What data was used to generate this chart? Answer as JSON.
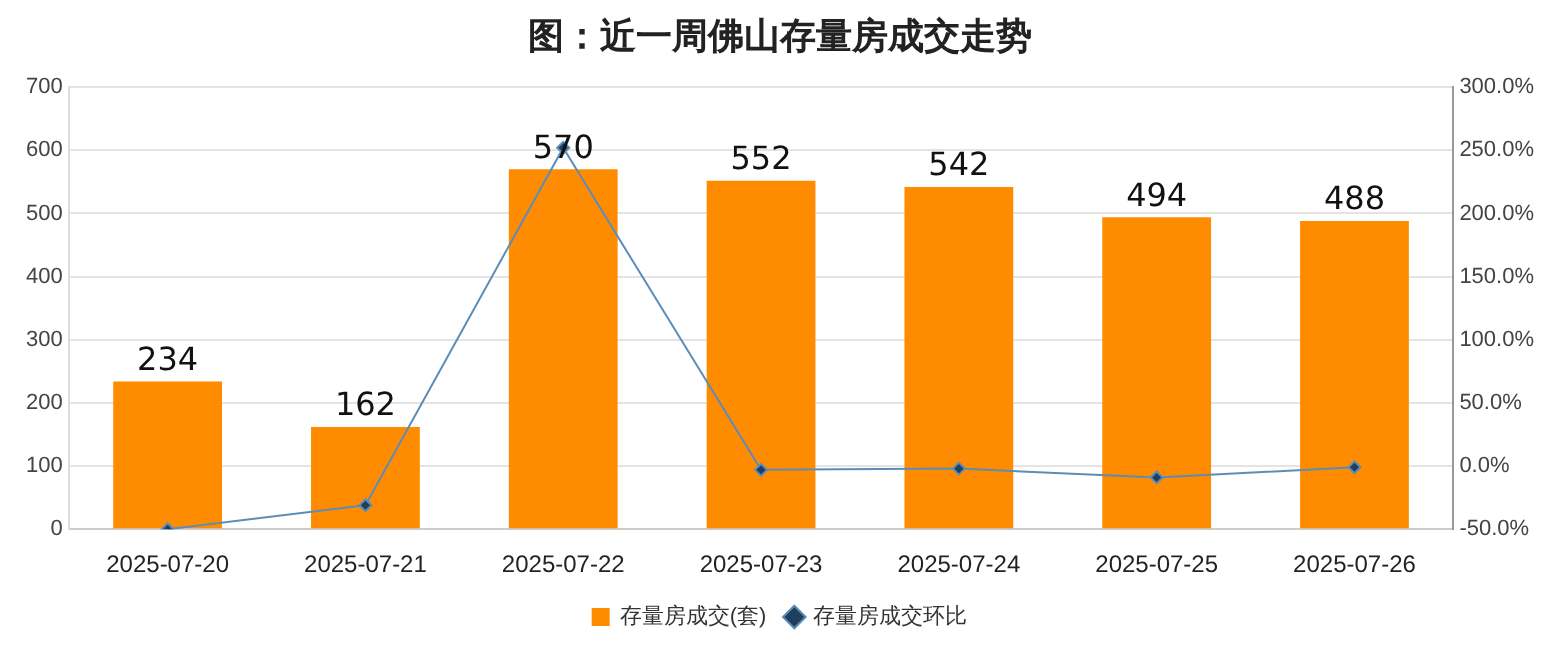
{
  "chart_data": {
    "type": "bar",
    "title": "图：近一周佛山存量房成交走势",
    "categories": [
      "2025-07-20",
      "2025-07-21",
      "2025-07-22",
      "2025-07-23",
      "2025-07-24",
      "2025-07-25",
      "2025-07-26"
    ],
    "series": [
      {
        "name": "存量房成交(套)",
        "color": "#ff8c00",
        "values": [
          234,
          162,
          570,
          552,
          542,
          494,
          488
        ],
        "value_labels": [
          "234",
          "162",
          "570",
          "552",
          "542",
          "494",
          "488"
        ]
      },
      {
        "name": "存量房成交环比",
        "type": "line",
        "axis": "y2",
        "color": "#5b8db8",
        "marker": "diamond",
        "values": [
          -50,
          -31,
          252,
          -3,
          -2,
          -9,
          -1
        ]
      }
    ],
    "ylim": [
      0,
      700
    ],
    "yticks": [
      0,
      100,
      200,
      300,
      400,
      500,
      600,
      700
    ],
    "y2lim": [
      -50,
      300
    ],
    "y2ticks": [
      {
        "value": -50,
        "label": "-50.0%"
      },
      {
        "value": 0,
        "label": "0.0%"
      },
      {
        "value": 50,
        "label": "50.0%"
      },
      {
        "value": 100,
        "label": "100.0%"
      },
      {
        "value": 150,
        "label": "150.0%"
      },
      {
        "value": 200,
        "label": "200.0%"
      },
      {
        "value": 250,
        "label": "250.0%"
      },
      {
        "value": 300,
        "label": "300.0%"
      }
    ],
    "grid": "y",
    "legend": "bottom"
  }
}
